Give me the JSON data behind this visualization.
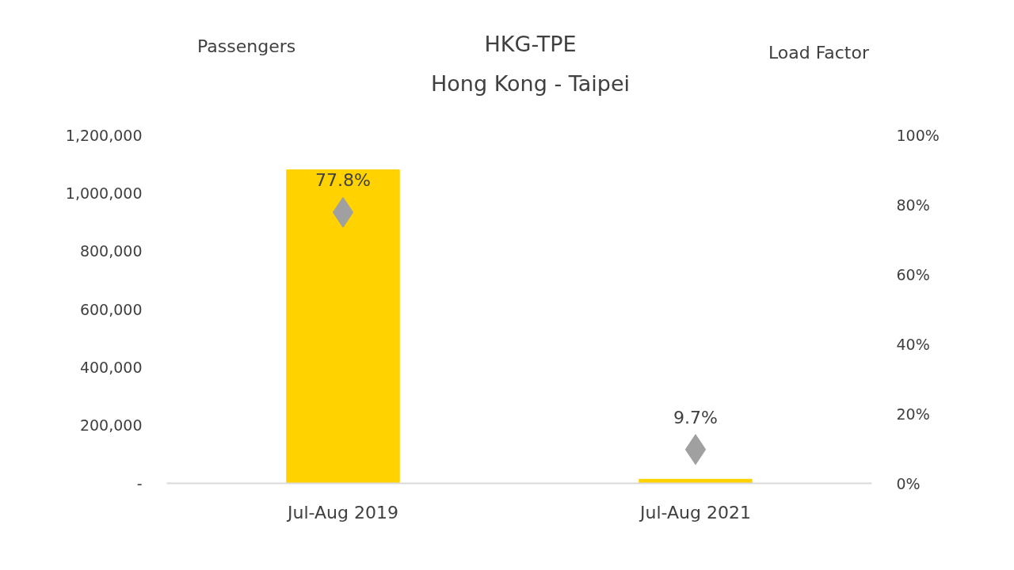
{
  "chart_data": {
    "type": "bar",
    "title": "HKG-TPE",
    "subtitle": "Hong Kong - Taipei",
    "ylabel": "Passengers",
    "y2label": "Load Factor",
    "categories": [
      "Jul-Aug 2019",
      "Jul-Aug 2021"
    ],
    "series": [
      {
        "color": "#ffd200",
        "values": [
          1080000,
          14000
        ]
      },
      {
        "type": "scatter",
        "axis": "y2",
        "color": "#a0a0a0",
        "marker": "diamond",
        "values": [
          77.8,
          9.7
        ],
        "value_labels": [
          "77.8%",
          "9.7%"
        ]
      }
    ],
    "ylim": [
      0,
      1200000
    ],
    "yticks": [
      {
        "value": 0,
        "label": "-"
      },
      {
        "value": 200000,
        "label": "200,000"
      },
      {
        "value": 400000,
        "label": "400,000"
      },
      {
        "value": 600000,
        "label": "600,000"
      },
      {
        "value": 800000,
        "label": "800,000"
      },
      {
        "value": 1000000,
        "label": "1,000,000"
      },
      {
        "value": 1200000,
        "label": "1,200,000"
      }
    ],
    "y2lim": [
      0,
      100
    ],
    "y2ticks": [
      {
        "value": 0,
        "label": "0%"
      },
      {
        "value": 20,
        "label": "20%"
      },
      {
        "value": 40,
        "label": "40%"
      },
      {
        "value": 60,
        "label": "60%"
      },
      {
        "value": 80,
        "label": "80%"
      },
      {
        "value": 100,
        "label": "100%"
      }
    ],
    "grid": false
  }
}
